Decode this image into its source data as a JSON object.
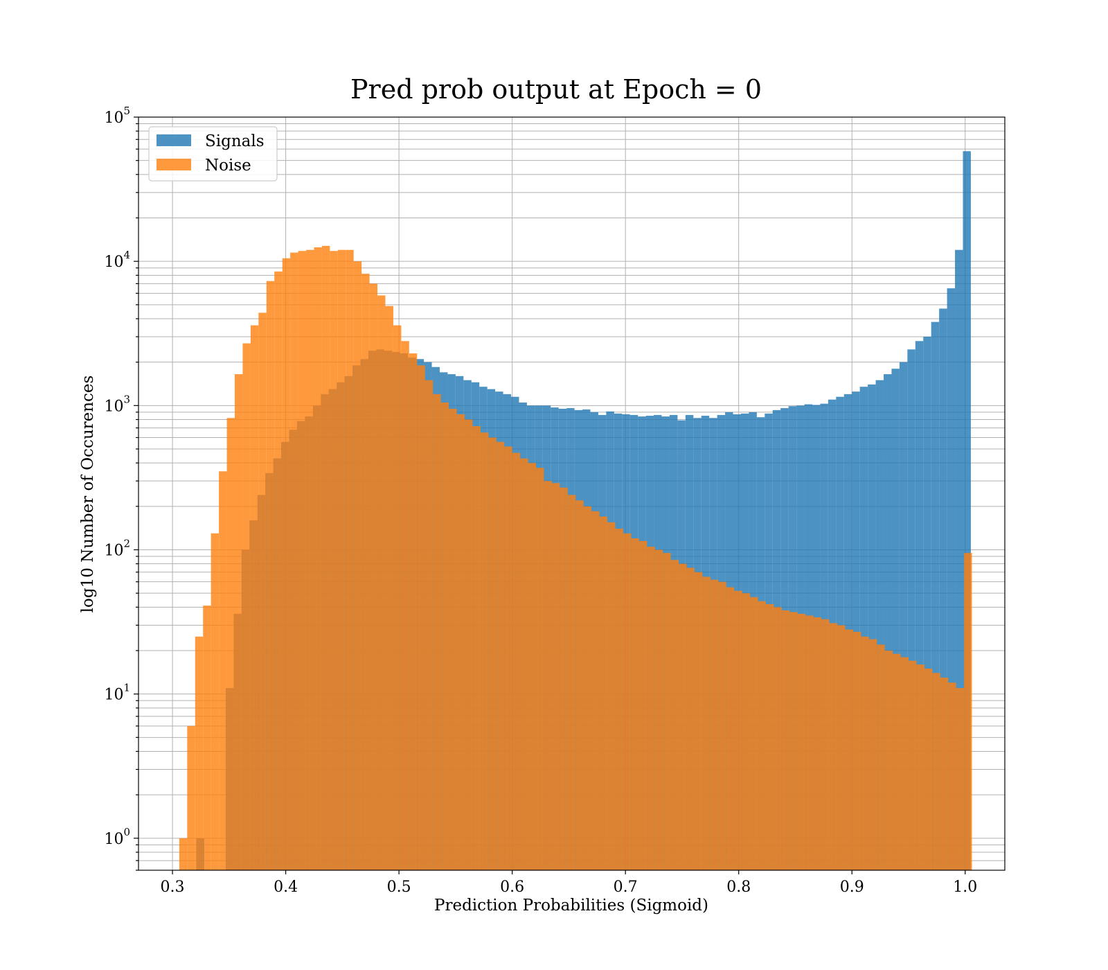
{
  "chart_data": {
    "type": "bar",
    "title": "Pred prob output at Epoch = 0",
    "xlabel": "Prediction Probabilities (Sigmoid)",
    "ylabel": "log10 Number of Occurences",
    "x_scale": "linear",
    "y_scale": "log",
    "xlim": [
      0.27,
      1.035
    ],
    "ylim": [
      0.6,
      100000
    ],
    "x_ticks": [
      "0.3",
      "0.4",
      "0.5",
      "0.6",
      "0.7",
      "0.8",
      "0.9",
      "1.0"
    ],
    "x_tick_values": [
      0.3,
      0.4,
      0.5,
      0.6,
      0.7,
      0.8,
      0.9,
      1.0
    ],
    "y_ticks": [
      {
        "base": "10",
        "exp": "0",
        "value": 1
      },
      {
        "base": "10",
        "exp": "1",
        "value": 10
      },
      {
        "base": "10",
        "exp": "2",
        "value": 100
      },
      {
        "base": "10",
        "exp": "3",
        "value": 1000
      },
      {
        "base": "10",
        "exp": "4",
        "value": 10000
      },
      {
        "base": "10",
        "exp": "5",
        "value": 100000
      }
    ],
    "grid": true,
    "legend_position": "top-left",
    "series": [
      {
        "name": "Signals",
        "color": "#1f77b4",
        "opacity": 0.8,
        "bins": [
          [
            0.321,
            0.328,
            1
          ],
          [
            0.347,
            0.354,
            11
          ],
          [
            0.354,
            0.361,
            36
          ],
          [
            0.361,
            0.368,
            100
          ],
          [
            0.368,
            0.375,
            160
          ],
          [
            0.375,
            0.382,
            240
          ],
          [
            0.382,
            0.389,
            340
          ],
          [
            0.389,
            0.396,
            430
          ],
          [
            0.396,
            0.403,
            560
          ],
          [
            0.403,
            0.41,
            680
          ],
          [
            0.41,
            0.417,
            780
          ],
          [
            0.417,
            0.424,
            840
          ],
          [
            0.424,
            0.431,
            1000
          ],
          [
            0.431,
            0.438,
            1200
          ],
          [
            0.438,
            0.445,
            1300
          ],
          [
            0.445,
            0.452,
            1450
          ],
          [
            0.452,
            0.459,
            1600
          ],
          [
            0.459,
            0.466,
            1900
          ],
          [
            0.466,
            0.473,
            2100
          ],
          [
            0.473,
            0.48,
            2400
          ],
          [
            0.48,
            0.487,
            2450
          ],
          [
            0.487,
            0.494,
            2400
          ],
          [
            0.494,
            0.501,
            2350
          ],
          [
            0.501,
            0.508,
            2300
          ],
          [
            0.508,
            0.515,
            2150
          ],
          [
            0.515,
            0.522,
            2100
          ],
          [
            0.522,
            0.529,
            2000
          ],
          [
            0.529,
            0.536,
            1850
          ],
          [
            0.536,
            0.543,
            1700
          ],
          [
            0.543,
            0.55,
            1650
          ],
          [
            0.55,
            0.557,
            1600
          ],
          [
            0.557,
            0.564,
            1500
          ],
          [
            0.564,
            0.571,
            1450
          ],
          [
            0.571,
            0.578,
            1350
          ],
          [
            0.578,
            0.585,
            1300
          ],
          [
            0.585,
            0.592,
            1250
          ],
          [
            0.592,
            0.599,
            1200
          ],
          [
            0.599,
            0.606,
            1150
          ],
          [
            0.606,
            0.613,
            1050
          ],
          [
            0.613,
            0.62,
            1000
          ],
          [
            0.62,
            0.627,
            1000
          ],
          [
            0.627,
            0.634,
            1000
          ],
          [
            0.634,
            0.641,
            970
          ],
          [
            0.641,
            0.648,
            950
          ],
          [
            0.648,
            0.655,
            960
          ],
          [
            0.655,
            0.662,
            930
          ],
          [
            0.662,
            0.669,
            940
          ],
          [
            0.669,
            0.676,
            900
          ],
          [
            0.676,
            0.683,
            860
          ],
          [
            0.683,
            0.69,
            910
          ],
          [
            0.69,
            0.697,
            880
          ],
          [
            0.697,
            0.704,
            870
          ],
          [
            0.704,
            0.711,
            860
          ],
          [
            0.711,
            0.718,
            840
          ],
          [
            0.718,
            0.725,
            850
          ],
          [
            0.725,
            0.732,
            860
          ],
          [
            0.732,
            0.739,
            840
          ],
          [
            0.739,
            0.746,
            860
          ],
          [
            0.746,
            0.753,
            790
          ],
          [
            0.753,
            0.76,
            860
          ],
          [
            0.76,
            0.767,
            820
          ],
          [
            0.767,
            0.774,
            850
          ],
          [
            0.774,
            0.781,
            820
          ],
          [
            0.781,
            0.788,
            860
          ],
          [
            0.788,
            0.795,
            900
          ],
          [
            0.795,
            0.802,
            870
          ],
          [
            0.802,
            0.809,
            880
          ],
          [
            0.809,
            0.816,
            900
          ],
          [
            0.816,
            0.823,
            830
          ],
          [
            0.823,
            0.83,
            880
          ],
          [
            0.83,
            0.837,
            930
          ],
          [
            0.837,
            0.844,
            960
          ],
          [
            0.844,
            0.851,
            990
          ],
          [
            0.851,
            0.858,
            1000
          ],
          [
            0.858,
            0.865,
            1020
          ],
          [
            0.865,
            0.872,
            1010
          ],
          [
            0.872,
            0.879,
            1030
          ],
          [
            0.879,
            0.886,
            1100
          ],
          [
            0.886,
            0.893,
            1150
          ],
          [
            0.893,
            0.9,
            1200
          ],
          [
            0.9,
            0.907,
            1250
          ],
          [
            0.907,
            0.914,
            1350
          ],
          [
            0.914,
            0.921,
            1400
          ],
          [
            0.921,
            0.928,
            1500
          ],
          [
            0.928,
            0.935,
            1650
          ],
          [
            0.935,
            0.942,
            1800
          ],
          [
            0.942,
            0.949,
            2000
          ],
          [
            0.949,
            0.956,
            2450
          ],
          [
            0.956,
            0.963,
            2800
          ],
          [
            0.963,
            0.97,
            3000
          ],
          [
            0.97,
            0.977,
            3800
          ],
          [
            0.977,
            0.984,
            4700
          ],
          [
            0.984,
            0.991,
            6500
          ],
          [
            0.991,
            0.998,
            12000
          ],
          [
            0.998,
            1.005,
            58000
          ]
        ]
      },
      {
        "name": "Noise",
        "color": "#ff7f0e",
        "opacity": 0.8,
        "bins": [
          [
            0.306,
            0.313,
            1
          ],
          [
            0.313,
            0.32,
            6
          ],
          [
            0.32,
            0.327,
            25
          ],
          [
            0.327,
            0.334,
            41
          ],
          [
            0.334,
            0.341,
            130
          ],
          [
            0.341,
            0.348,
            350
          ],
          [
            0.348,
            0.355,
            820
          ],
          [
            0.355,
            0.362,
            1650
          ],
          [
            0.362,
            0.369,
            2700
          ],
          [
            0.369,
            0.376,
            3600
          ],
          [
            0.376,
            0.383,
            4400
          ],
          [
            0.383,
            0.39,
            7300
          ],
          [
            0.39,
            0.397,
            8500
          ],
          [
            0.397,
            0.404,
            10500
          ],
          [
            0.404,
            0.411,
            11500
          ],
          [
            0.411,
            0.418,
            11800
          ],
          [
            0.418,
            0.425,
            12000
          ],
          [
            0.425,
            0.432,
            12500
          ],
          [
            0.432,
            0.439,
            12800
          ],
          [
            0.439,
            0.446,
            11800
          ],
          [
            0.446,
            0.453,
            12000
          ],
          [
            0.453,
            0.46,
            12000
          ],
          [
            0.46,
            0.467,
            10000
          ],
          [
            0.467,
            0.474,
            8200
          ],
          [
            0.474,
            0.481,
            7000
          ],
          [
            0.481,
            0.488,
            5800
          ],
          [
            0.488,
            0.495,
            4900
          ],
          [
            0.495,
            0.502,
            3600
          ],
          [
            0.502,
            0.509,
            2800
          ],
          [
            0.509,
            0.516,
            2300
          ],
          [
            0.516,
            0.523,
            1900
          ],
          [
            0.523,
            0.53,
            1500
          ],
          [
            0.53,
            0.537,
            1200
          ],
          [
            0.537,
            0.544,
            1050
          ],
          [
            0.544,
            0.551,
            950
          ],
          [
            0.551,
            0.558,
            870
          ],
          [
            0.558,
            0.565,
            800
          ],
          [
            0.565,
            0.572,
            720
          ],
          [
            0.572,
            0.579,
            650
          ],
          [
            0.579,
            0.586,
            600
          ],
          [
            0.586,
            0.593,
            560
          ],
          [
            0.593,
            0.6,
            520
          ],
          [
            0.6,
            0.607,
            470
          ],
          [
            0.607,
            0.614,
            430
          ],
          [
            0.614,
            0.621,
            400
          ],
          [
            0.621,
            0.628,
            370
          ],
          [
            0.628,
            0.635,
            300
          ],
          [
            0.635,
            0.642,
            290
          ],
          [
            0.642,
            0.649,
            270
          ],
          [
            0.649,
            0.656,
            240
          ],
          [
            0.656,
            0.663,
            220
          ],
          [
            0.663,
            0.67,
            200
          ],
          [
            0.67,
            0.677,
            185
          ],
          [
            0.677,
            0.684,
            170
          ],
          [
            0.684,
            0.691,
            155
          ],
          [
            0.691,
            0.698,
            140
          ],
          [
            0.698,
            0.705,
            130
          ],
          [
            0.705,
            0.712,
            120
          ],
          [
            0.712,
            0.719,
            115
          ],
          [
            0.719,
            0.726,
            105
          ],
          [
            0.726,
            0.733,
            100
          ],
          [
            0.733,
            0.74,
            95
          ],
          [
            0.74,
            0.747,
            85
          ],
          [
            0.747,
            0.754,
            80
          ],
          [
            0.754,
            0.761,
            75
          ],
          [
            0.761,
            0.768,
            70
          ],
          [
            0.768,
            0.775,
            65
          ],
          [
            0.775,
            0.782,
            62
          ],
          [
            0.782,
            0.789,
            60
          ],
          [
            0.789,
            0.796,
            55
          ],
          [
            0.796,
            0.803,
            52
          ],
          [
            0.803,
            0.81,
            50
          ],
          [
            0.81,
            0.817,
            47
          ],
          [
            0.817,
            0.824,
            44
          ],
          [
            0.824,
            0.831,
            42
          ],
          [
            0.831,
            0.838,
            40
          ],
          [
            0.838,
            0.845,
            38
          ],
          [
            0.845,
            0.852,
            37
          ],
          [
            0.852,
            0.859,
            36
          ],
          [
            0.859,
            0.866,
            35
          ],
          [
            0.866,
            0.873,
            34
          ],
          [
            0.873,
            0.88,
            33
          ],
          [
            0.88,
            0.887,
            31
          ],
          [
            0.887,
            0.894,
            30
          ],
          [
            0.894,
            0.901,
            28
          ],
          [
            0.901,
            0.908,
            27
          ],
          [
            0.908,
            0.915,
            25
          ],
          [
            0.915,
            0.922,
            24
          ],
          [
            0.922,
            0.929,
            22
          ],
          [
            0.929,
            0.936,
            20
          ],
          [
            0.936,
            0.943,
            19
          ],
          [
            0.943,
            0.95,
            18
          ],
          [
            0.95,
            0.957,
            17
          ],
          [
            0.957,
            0.964,
            16
          ],
          [
            0.964,
            0.971,
            15
          ],
          [
            0.971,
            0.978,
            14
          ],
          [
            0.978,
            0.985,
            13
          ],
          [
            0.985,
            0.992,
            12
          ],
          [
            0.992,
            0.999,
            11
          ],
          [
            0.999,
            1.006,
            95
          ]
        ]
      }
    ]
  }
}
